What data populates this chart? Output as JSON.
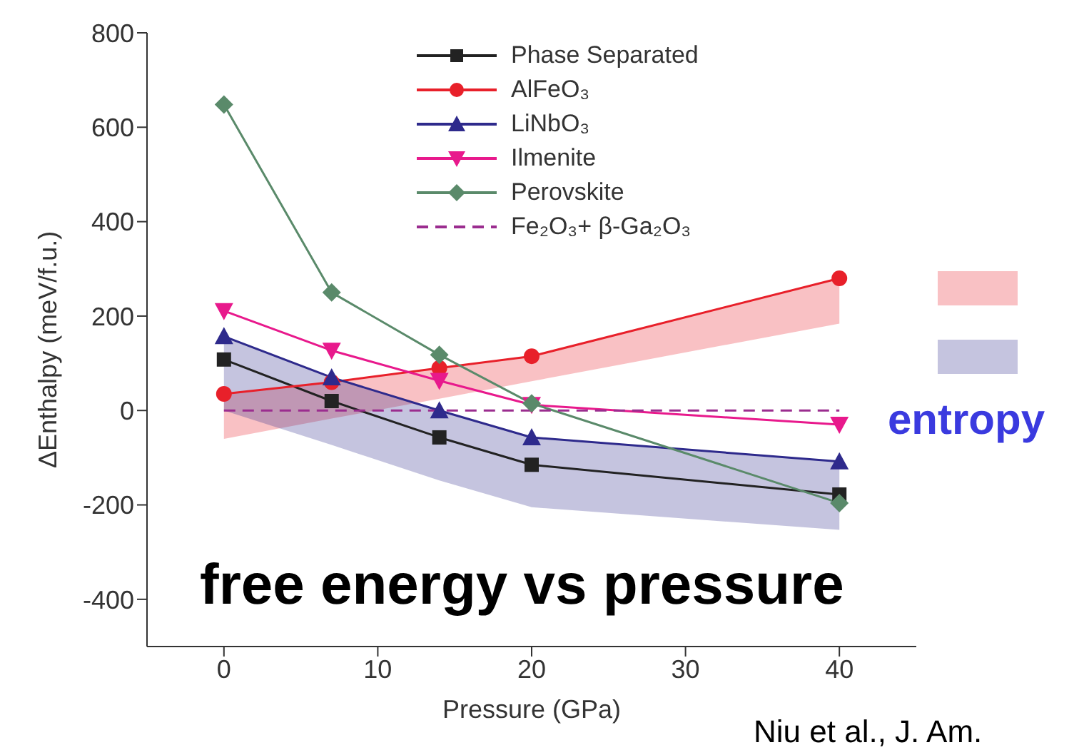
{
  "chart_data": {
    "type": "line",
    "xlabel": "Pressure (GPa)",
    "ylabel": "ΔEnthalpy (meV/f.u.)",
    "x": [
      0,
      7,
      14,
      20,
      40
    ],
    "xlim": [
      -5,
      45
    ],
    "xticks": [
      0,
      10,
      20,
      30,
      40
    ],
    "ylim": [
      -500,
      800
    ],
    "yticks": [
      -400,
      -200,
      0,
      200,
      400,
      600,
      800
    ],
    "legend": "top",
    "grid": false,
    "line_style": "solid",
    "series": [
      {
        "name": "Phase Separated",
        "color": "#222222",
        "marker": "square",
        "values": [
          108,
          20,
          -57,
          -115,
          -178
        ]
      },
      {
        "name": "AlFeO₃",
        "color": "#e8202a",
        "marker": "circle",
        "values": [
          35,
          60,
          90,
          115,
          280
        ],
        "lower": [
          -60,
          -17,
          25,
          62,
          184
        ],
        "upper": [
          35,
          60,
          90,
          115,
          280
        ]
      },
      {
        "name": "LiNbO₃",
        "color": "#2e2a8c",
        "marker": "triangle",
        "values": [
          157,
          70,
          0,
          -57,
          -108
        ],
        "lower": [
          0,
          -73,
          -148,
          -205,
          -253
        ],
        "upper": [
          157,
          70,
          0,
          -57,
          -108
        ]
      },
      {
        "name": "Ilmenite",
        "color": "#e8198c",
        "marker": "triangle-down",
        "values": [
          211,
          127,
          63,
          12,
          -30
        ]
      },
      {
        "name": "Perovskite",
        "color": "#5a8a6a",
        "marker": "diamond",
        "values": [
          648,
          250,
          118,
          15,
          -196
        ]
      },
      {
        "name": "Fe₂O₃+ β-Ga₂O₃",
        "color": "#9b2d8f",
        "marker": "none",
        "line_style": "dashed",
        "x": [
          0,
          40
        ],
        "values": [
          0,
          0
        ]
      }
    ],
    "annotations": [
      "entropy",
      "free energy vs pressure",
      "Niu et al., J. Am."
    ]
  }
}
